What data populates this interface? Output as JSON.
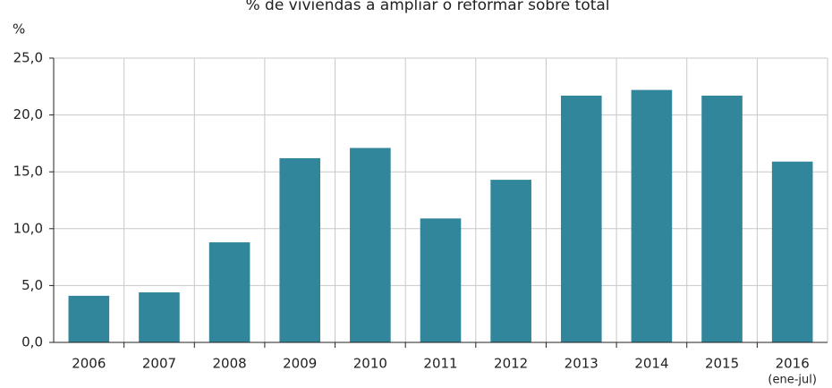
{
  "chart_data": {
    "type": "bar",
    "title": "% de viviendas a ampliar o reformar sobre total",
    "y_label": "%",
    "categories": [
      "2006",
      "2007",
      "2008",
      "2009",
      "2010",
      "2011",
      "2012",
      "2013",
      "2014",
      "2015",
      "2016"
    ],
    "annotation": "(ene-jul)",
    "values": [
      4.1,
      4.4,
      8.8,
      16.2,
      17.1,
      10.9,
      14.3,
      21.7,
      22.2,
      21.7,
      15.9
    ],
    "color": "#31869b",
    "ylim": [
      0,
      25
    ],
    "yticks": [
      {
        "value": 0,
        "label": "0,0"
      },
      {
        "value": 5,
        "label": "5,0"
      },
      {
        "value": 10,
        "label": "10,0"
      },
      {
        "value": 15,
        "label": "15,0"
      },
      {
        "value": 20,
        "label": "20,0"
      },
      {
        "value": 25,
        "label": "25,0"
      }
    ],
    "grid": true
  }
}
